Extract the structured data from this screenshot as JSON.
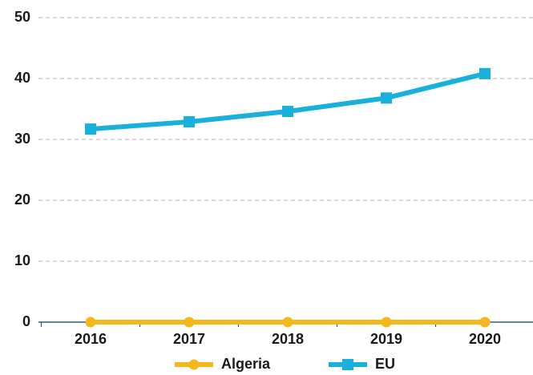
{
  "chart_data": {
    "type": "line",
    "categories": [
      "2016",
      "2017",
      "2018",
      "2019",
      "2020"
    ],
    "series": [
      {
        "name": "Algeria",
        "color": "#f5b81c",
        "marker": "circle",
        "values": [
          0,
          0,
          0,
          0,
          0
        ]
      },
      {
        "name": "EU",
        "color": "#1ab0dc",
        "marker": "square",
        "values": [
          31.7,
          32.9,
          34.6,
          36.8,
          40.8
        ]
      }
    ],
    "ylim": [
      0,
      50
    ],
    "yticks": [
      0,
      10,
      20,
      30,
      40,
      50
    ],
    "grid": true,
    "legend": "bottom"
  }
}
